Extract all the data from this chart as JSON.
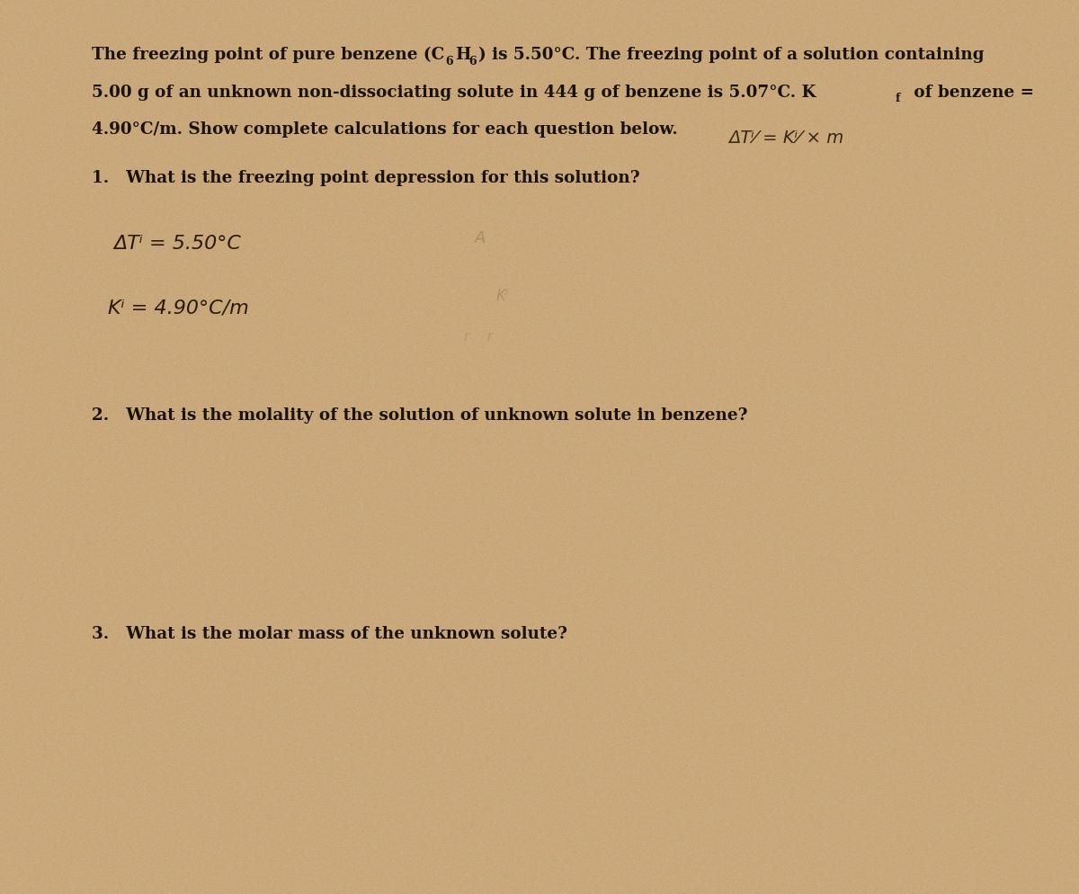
{
  "background_color": "#c9a87c",
  "text_color": "#1a1208",
  "handwritten_color": "#2a1a08",
  "faint_color": "#7a6040",
  "fig_width": 12.0,
  "fig_height": 9.95,
  "dpi": 100,
  "line1": "The freezing point of pure benzene (C",
  "line1_H": "H",
  "line1_end": ") is 5.50°C. The freezing point of a solution containing",
  "line2": "5.00 g of an unknown non-dissociating solute in 444 g of benzene is 5.07°C. K",
  "line2_sub": "f",
  "line2_end": " of benzene =",
  "line3": "4.90°C/m. Show complete calculations for each question below.",
  "formula_rhs": "ΔTⁱ = Kⁱ × m",
  "q1": "1.   What is the freezing point depression for this solution?",
  "q1_hw1": "ΔTⁱ = 5.50°C",
  "q1_hw2": "Kⁱ = 4.90°C/m",
  "q2": "2.   What is the molality of the solution of unknown solute in benzene?",
  "q3": "3.   What is the molar mass of the unknown solute?"
}
